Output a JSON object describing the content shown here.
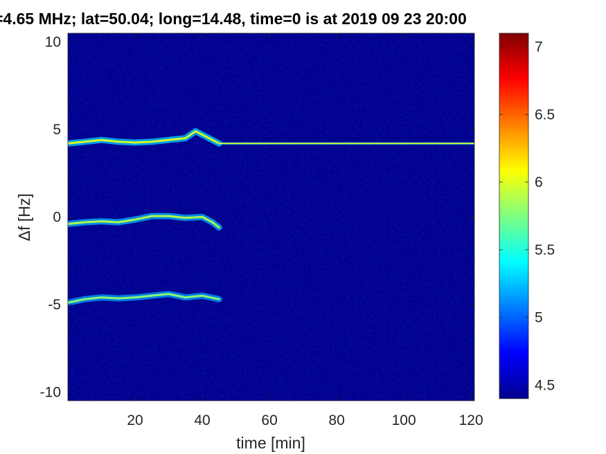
{
  "chart_data": {
    "type": "heatmap",
    "title": "=4.65 MHz;  lat=50.04; long=14.48, time=0 is at 2019 09 23 20:00",
    "xlabel": "time [min]",
    "ylabel": "Δf [Hz]",
    "xlim": [
      0,
      121
    ],
    "ylim": [
      -10.5,
      10.5
    ],
    "x_ticks": [
      {
        "value": 20,
        "label": "20"
      },
      {
        "value": 40,
        "label": "40"
      },
      {
        "value": 60,
        "label": "60"
      },
      {
        "value": 80,
        "label": "80"
      },
      {
        "value": 100,
        "label": "100"
      },
      {
        "value": 120,
        "label": "120"
      }
    ],
    "y_ticks": [
      {
        "value": 10,
        "label": "10"
      },
      {
        "value": 5,
        "label": "5"
      },
      {
        "value": 0,
        "label": "0"
      },
      {
        "value": -5,
        "label": "-5"
      },
      {
        "value": -10,
        "label": "-10"
      }
    ],
    "colorbar": {
      "colormap": "jet",
      "range": [
        4.4,
        7.1
      ],
      "ticks": [
        {
          "value": 4.5,
          "label": "4.5"
        },
        {
          "value": 5,
          "label": "5"
        },
        {
          "value": 5.5,
          "label": "5.5"
        },
        {
          "value": 6,
          "label": "6"
        },
        {
          "value": 6.5,
          "label": "6.5"
        },
        {
          "value": 7,
          "label": "7"
        }
      ]
    },
    "background_color": "#00008f",
    "traces": [
      {
        "points": [
          [
            0,
            4.2
          ],
          [
            5,
            4.3
          ],
          [
            10,
            4.4
          ],
          [
            15,
            4.3
          ],
          [
            20,
            4.25
          ],
          [
            25,
            4.3
          ],
          [
            30,
            4.4
          ],
          [
            35,
            4.5
          ],
          [
            38,
            4.9
          ],
          [
            40,
            4.7
          ],
          [
            43,
            4.4
          ],
          [
            45,
            4.2
          ]
        ],
        "intensity": 6.0
      },
      {
        "points": [
          [
            45,
            4.2
          ],
          [
            60,
            4.2
          ],
          [
            80,
            4.2
          ],
          [
            100,
            4.2
          ],
          [
            121,
            4.2
          ]
        ],
        "intensity": 6.1
      },
      {
        "points": [
          [
            0,
            -0.4
          ],
          [
            5,
            -0.3
          ],
          [
            10,
            -0.25
          ],
          [
            15,
            -0.3
          ],
          [
            20,
            -0.15
          ],
          [
            25,
            0.05
          ],
          [
            30,
            0.05
          ],
          [
            35,
            -0.05
          ],
          [
            40,
            0.0
          ],
          [
            43,
            -0.3
          ],
          [
            45,
            -0.6
          ]
        ],
        "intensity": 5.9
      },
      {
        "points": [
          [
            0,
            -4.9
          ],
          [
            5,
            -4.7
          ],
          [
            10,
            -4.6
          ],
          [
            15,
            -4.65
          ],
          [
            20,
            -4.6
          ],
          [
            25,
            -4.5
          ],
          [
            30,
            -4.4
          ],
          [
            35,
            -4.6
          ],
          [
            40,
            -4.5
          ],
          [
            45,
            -4.7
          ]
        ],
        "intensity": 5.8
      }
    ]
  }
}
